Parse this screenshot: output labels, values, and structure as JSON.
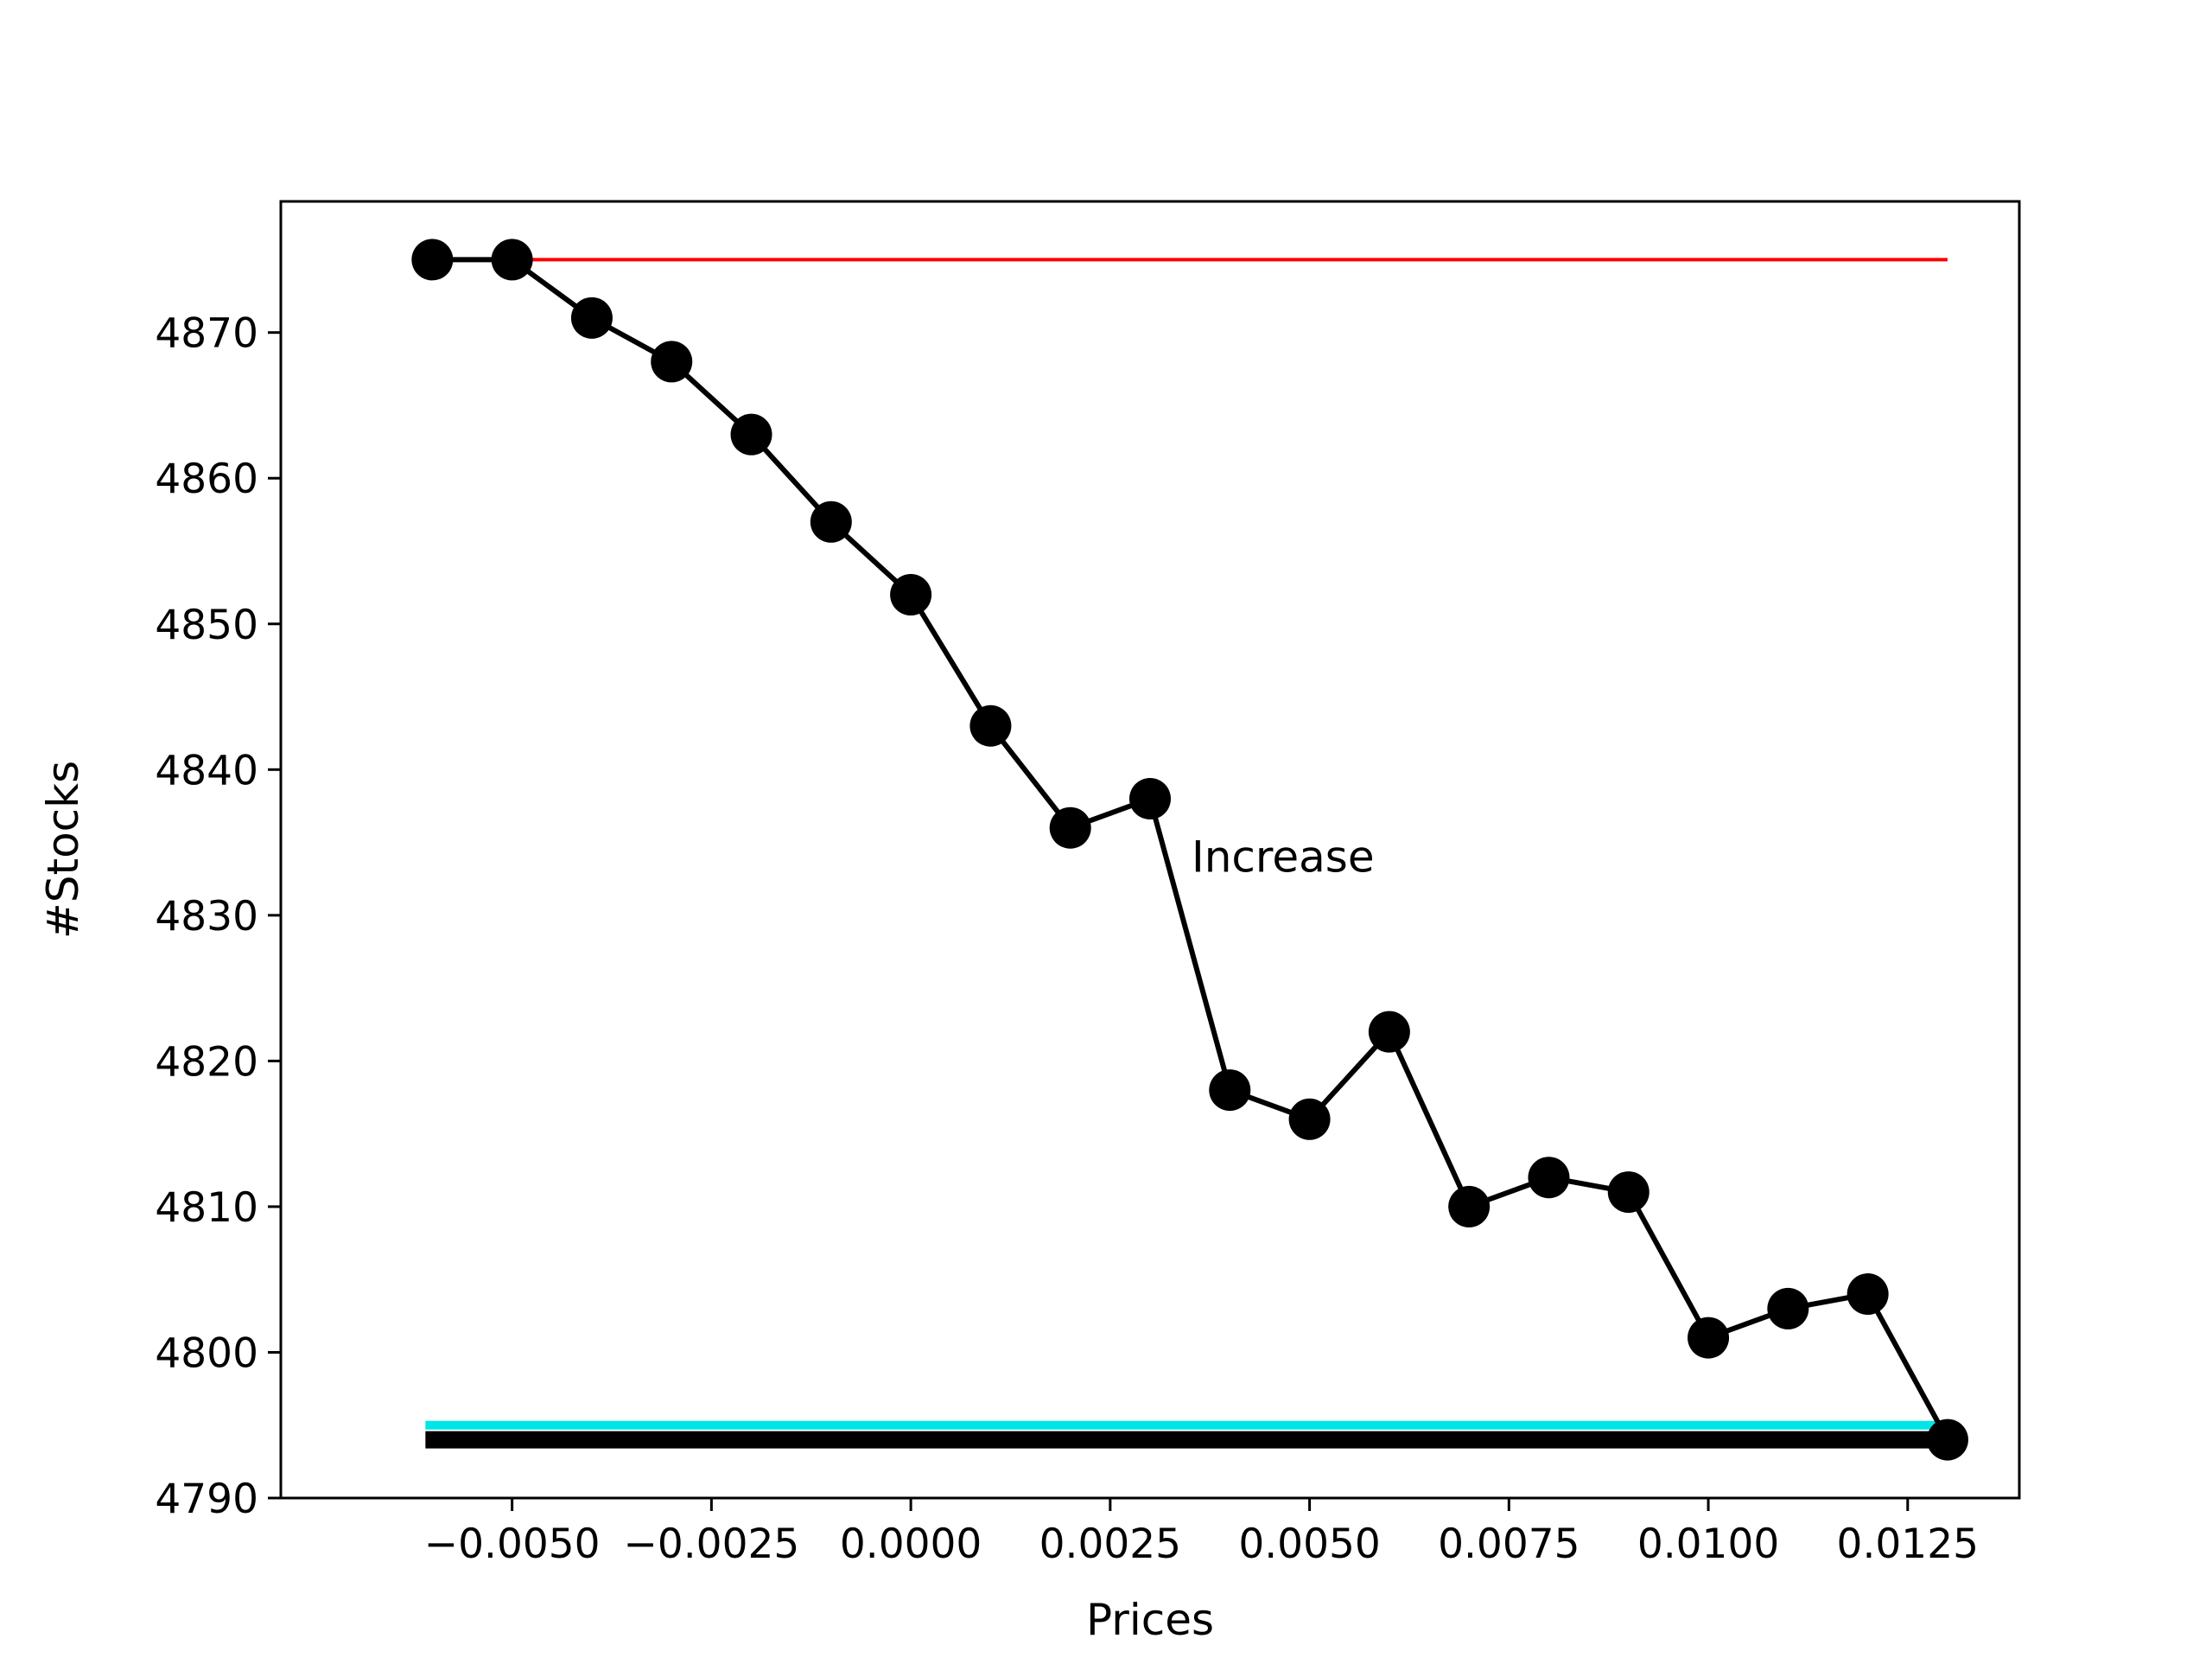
{
  "chart_data": {
    "type": "line",
    "title": "",
    "xlabel": "Prices",
    "ylabel": "#Stocks",
    "xlim": [
      -0.0079,
      0.0139
    ],
    "ylim": [
      4790,
      4879
    ],
    "grid": false,
    "xticks": [
      -0.005,
      -0.0025,
      0.0,
      0.0025,
      0.005,
      0.0075,
      0.01,
      0.0125
    ],
    "xtick_labels": [
      "−0.0050",
      "−0.0025",
      "0.0000",
      "0.0025",
      "0.0050",
      "0.0075",
      "0.0100",
      "0.0125"
    ],
    "yticks": [
      4790,
      4800,
      4810,
      4820,
      4830,
      4840,
      4850,
      4860,
      4870
    ],
    "ytick_labels": [
      "4790",
      "4800",
      "4810",
      "4820",
      "4830",
      "4840",
      "4850",
      "4860",
      "4870"
    ],
    "series": [
      {
        "style": "line-markers",
        "color": "#000000",
        "x": [
          -0.006,
          -0.005,
          -0.004,
          -0.003,
          -0.002,
          -0.001,
          0.0,
          0.001,
          0.002,
          0.003,
          0.004,
          0.005,
          0.006,
          0.007,
          0.008,
          0.009,
          0.01,
          0.011,
          0.012,
          0.013
        ],
        "y": [
          4875,
          4875,
          4871,
          4868,
          4863,
          4857,
          4852,
          4843,
          4836,
          4838,
          4818,
          4816,
          4822,
          4810,
          4812,
          4811,
          4801,
          4803,
          4804,
          4794
        ]
      }
    ],
    "reference_lines": [
      {
        "color": "#ff0000",
        "y": 4875,
        "x_range": [
          -0.005,
          0.013
        ],
        "weight": "thin"
      },
      {
        "color": "#00e5e5",
        "y": 4795,
        "x_range": [
          -0.006,
          0.013
        ],
        "weight": "medium"
      },
      {
        "color": "#000000",
        "y": 4794,
        "x_range": [
          -0.006,
          0.013
        ],
        "weight": "thick"
      }
    ],
    "annotations": [
      {
        "text": "Increase",
        "x": 0.00352,
        "y": 4834
      }
    ]
  }
}
